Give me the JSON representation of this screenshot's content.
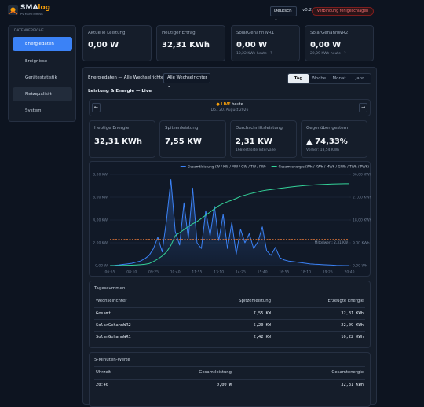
{
  "header": {
    "logo_main": "SMA",
    "logo_accent": "log",
    "tagline": "PV MONITORING",
    "language": "Deutsch",
    "version": "v0.2.0",
    "status": "Verbindung fehlgeschlagen"
  },
  "sidebar": {
    "title": "DATENBEREICHE",
    "items": [
      "Energiedaten",
      "Ereignisse",
      "Gerätestatistik",
      "Netzqualität",
      "System"
    ]
  },
  "summary_cards": [
    {
      "label": "Aktuelle Leistung",
      "value": "0,00 W"
    },
    {
      "label": "Heutiger Ertrag",
      "value": "32,31 KWh"
    },
    {
      "label": "SolarGehannWR1",
      "value": "0,00 W",
      "note": "10,22 KWh heute · ?"
    },
    {
      "label": "SolarGehannWR2",
      "value": "0,00 W",
      "note": "22,09 KWh heute · ?"
    }
  ],
  "panel": {
    "title": "Energiedaten — Alle Wechselrichter",
    "filter": "Alle Wechselrichter",
    "tabs": [
      "Tag",
      "Woche",
      "Monat",
      "Jahr"
    ],
    "subtitle": "Leistung & Energie — Live",
    "nav": {
      "prev": "←",
      "next": "→",
      "live": "LIVE",
      "day": "heute",
      "date": "Do., 20. August 2026"
    }
  },
  "stat_cards": [
    {
      "label": "Heutige Energie",
      "value": "32,31 KWh"
    },
    {
      "label": "Spitzenleistung",
      "value": "7,55 KW"
    },
    {
      "label": "Durchschnittsleistung",
      "value": "2,31 KW",
      "note": "168 erfasste Intervalle"
    },
    {
      "label": "Gegenüber gestern",
      "value": "▲ 74,33%",
      "note": "Vorher: 18,54 KWh"
    }
  ],
  "chart_data": {
    "type": "line",
    "grid": true,
    "categories": [
      "06:55",
      null,
      null,
      null,
      null,
      "08:10",
      null,
      null,
      null,
      null,
      "09:25",
      null,
      null,
      null,
      null,
      "10:40",
      null,
      null,
      null,
      null,
      "11:55",
      null,
      null,
      null,
      null,
      "13:10",
      null,
      null,
      null,
      null,
      "14:25",
      null,
      null,
      null,
      null,
      "15:40",
      null,
      null,
      null,
      null,
      "16:55",
      null,
      null,
      null,
      null,
      "18:10",
      null,
      null,
      null,
      null,
      "19:25",
      null,
      null,
      null,
      null,
      "20:40"
    ],
    "series": [
      {
        "name": "Gesamtleistung (W / KW / MW / GW / TW / PW)",
        "color": "#3b82f6",
        "axis": "y",
        "area": true,
        "values": [
          0,
          20,
          50,
          100,
          150,
          200,
          300,
          400,
          600,
          900,
          1500,
          2500,
          1200,
          4000,
          7550,
          3000,
          1800,
          5500,
          2400,
          6800,
          2000,
          1500,
          4800,
          2600,
          5200,
          2200,
          4500,
          1500,
          3800,
          1000,
          3200,
          2000,
          2800,
          1500,
          2100,
          3400,
          1300,
          900,
          1600,
          700,
          500,
          400,
          350,
          300,
          250,
          200,
          150,
          120,
          100,
          80,
          60,
          40,
          20,
          10,
          0,
          0
        ]
      },
      {
        "name": "Gesamtenergie (Wh / KWh / MWh / GWh / TWh / PWh)",
        "color": "#34d399",
        "axis": "y2",
        "area": false,
        "values": [
          0,
          10,
          30,
          60,
          100,
          160,
          240,
          350,
          500,
          800,
          1600,
          2600,
          3800,
          5400,
          8000,
          11800,
          13000,
          14200,
          15400,
          16500,
          17400,
          18600,
          19900,
          21100,
          22400,
          23600,
          24500,
          25200,
          25800,
          26500,
          27300,
          27800,
          28300,
          28700,
          29100,
          29500,
          29800,
          30000,
          30200,
          30500,
          30700,
          30900,
          31100,
          31300,
          31450,
          31600,
          31750,
          31850,
          31950,
          32050,
          32130,
          32190,
          32240,
          32280,
          32300,
          32310
        ]
      }
    ],
    "ylim": [
      0,
      8000
    ],
    "yticks": [
      {
        "value": 0,
        "label": "0,00 W"
      },
      {
        "value": 2000,
        "label": "2,00 KW"
      },
      {
        "value": 4000,
        "label": "4,00 KW"
      },
      {
        "value": 6000,
        "label": "6,00 KW"
      },
      {
        "value": 8000,
        "label": "8,00 KW"
      }
    ],
    "y2lim": [
      0,
      36000
    ],
    "y2ticks": [
      {
        "value": 0,
        "label": "0,00 Wh"
      },
      {
        "value": 9000,
        "label": "9,00 KWh"
      },
      {
        "value": 18000,
        "label": "18,00 KWh"
      },
      {
        "value": 27000,
        "label": "27,00 KWh"
      },
      {
        "value": 36000,
        "label": "36,00 KWh"
      }
    ],
    "average": {
      "value": 2310,
      "label": "Mittelwert: 2,31 KW",
      "color": "#e8793a"
    }
  },
  "daily_totals": {
    "title": "Tagessummen",
    "columns": [
      "Wechselrichter",
      "Spitzenleistung",
      "Erzeugte Energie"
    ],
    "rows": [
      [
        "Gesamt",
        "7,55 KW",
        "32,31 KWh"
      ],
      [
        "SolarGehannWR2",
        "5,20 KW",
        "22,09 KWh"
      ],
      [
        "SolarGehannWR1",
        "2,42 KW",
        "10,22 KWh"
      ]
    ]
  },
  "interval_values": {
    "title": "5-Minuten-Werte",
    "columns": [
      "Uhrzeit",
      "Gesamtleistung",
      "Gesamtenergie"
    ],
    "rows": [
      [
        "20:40",
        "0,00 W",
        "32,31 KWh"
      ]
    ]
  }
}
